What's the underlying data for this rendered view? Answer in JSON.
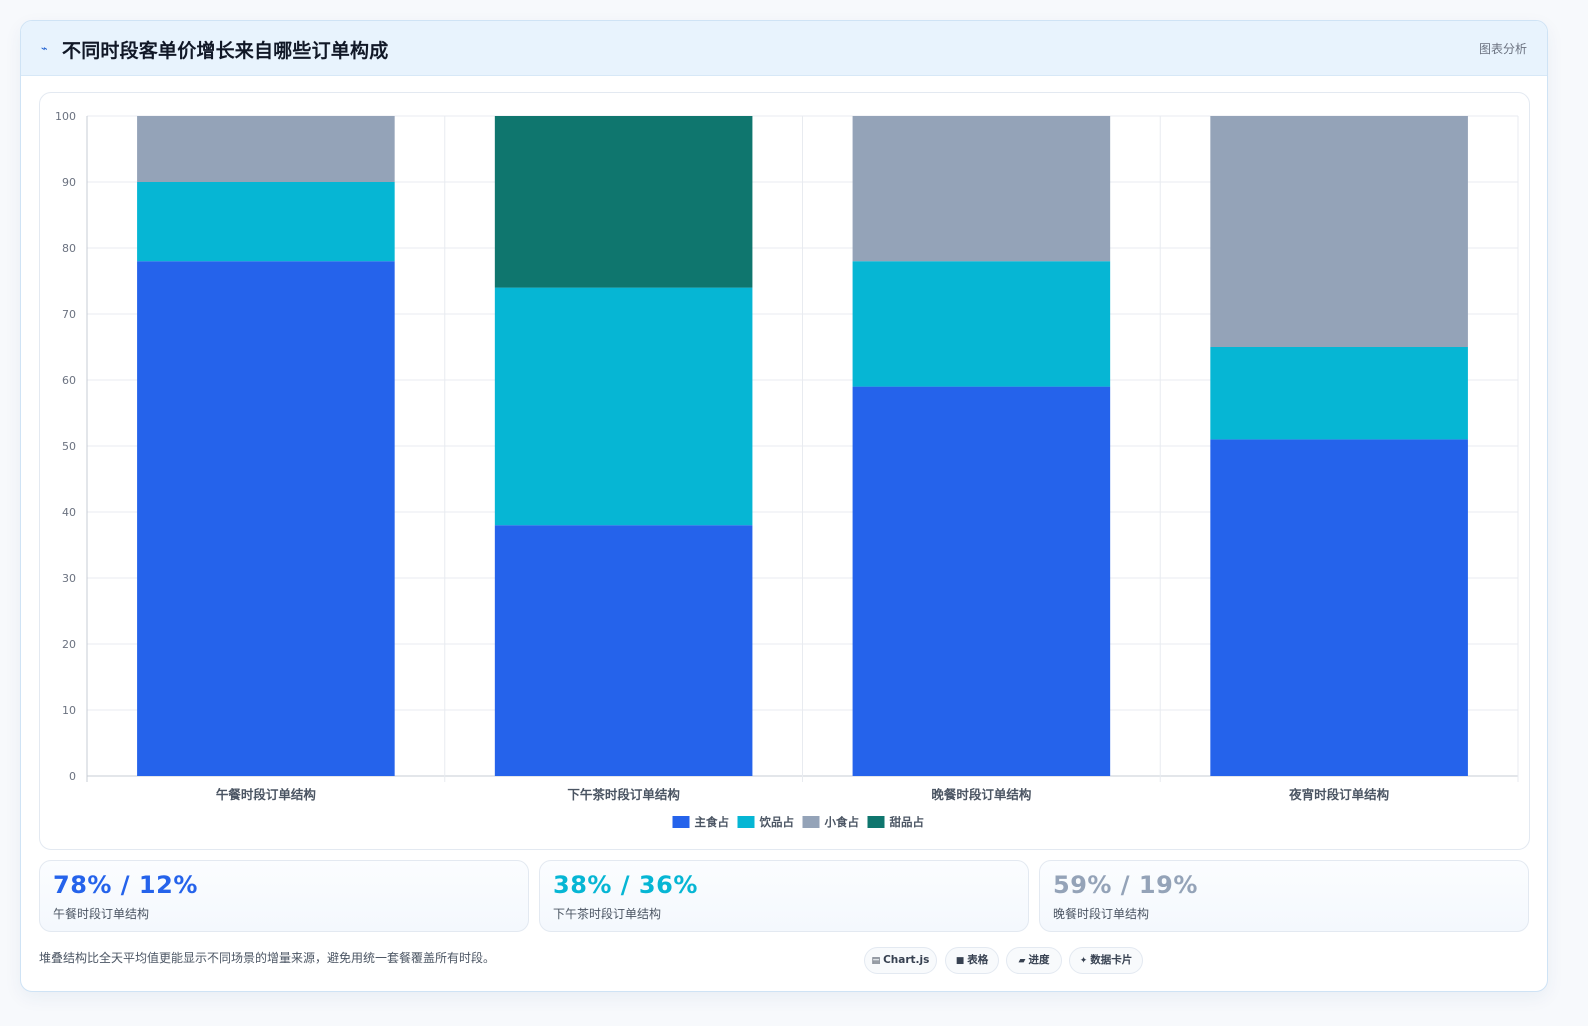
{
  "header": {
    "title": "不同时段客单价增长来自哪些订单构成",
    "right_label": "图表分析"
  },
  "chart_data": {
    "type": "bar",
    "stacked": true,
    "categories": [
      "午餐时段订单结构",
      "下午茶时段订单结构",
      "晚餐时段订单结构",
      "夜宵时段订单结构"
    ],
    "series": [
      {
        "name": "主食占",
        "color": "#2563eb",
        "values": [
          78,
          38,
          59,
          51
        ]
      },
      {
        "name": "饮品占",
        "color": "#06b6d4",
        "values": [
          12,
          36,
          19,
          14
        ]
      },
      {
        "name": "小食占",
        "color": "#94a3b8",
        "values": [
          10,
          0,
          22,
          35
        ]
      },
      {
        "name": "甜品占",
        "color": "#0f766e",
        "values": [
          0,
          26,
          0,
          0
        ]
      }
    ],
    "ylim": [
      0,
      100
    ],
    "yticks": [
      0,
      10,
      20,
      30,
      40,
      50,
      60,
      70,
      80,
      90,
      100
    ],
    "grid": true,
    "legend_position": "bottom"
  },
  "stats": [
    {
      "value": "78% / 12%",
      "label": "午餐时段订单结构",
      "color": "#2563eb"
    },
    {
      "value": "38% / 36%",
      "label": "下午茶时段订单结构",
      "color": "#06b6d4"
    },
    {
      "value": "59% / 19%",
      "label": "晚餐时段订单结构",
      "color": "#94a3b8"
    }
  ],
  "footer": {
    "note": "堆叠结构比全天平均值更能显示不同场景的增量来源，避免用统一套餐覆盖所有时段。"
  },
  "chips": [
    {
      "icon": "▤",
      "icon_name": "chart-icon",
      "label": "Chart.js"
    },
    {
      "icon": "■",
      "icon_name": "table-icon",
      "label": "表格"
    },
    {
      "icon": "▰",
      "icon_name": "progress-icon",
      "label": "进度"
    },
    {
      "icon": "✦",
      "icon_name": "card-icon",
      "label": "数据卡片"
    }
  ]
}
